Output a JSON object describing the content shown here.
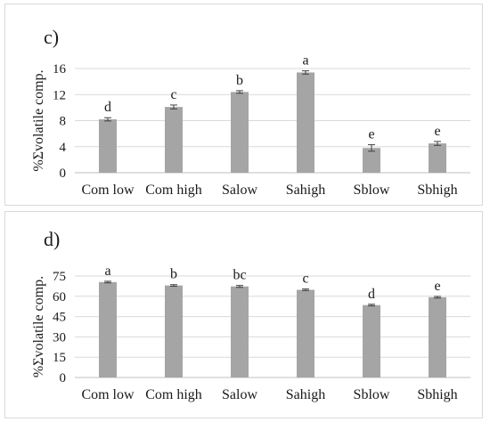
{
  "chart_data": [
    {
      "panel_label": "c)",
      "type": "bar",
      "categories": [
        "Com low",
        "Com high",
        "Salow",
        "Sahigh",
        "Sblow",
        "Sbhigh"
      ],
      "values": [
        8.2,
        10.1,
        12.4,
        15.4,
        3.8,
        4.5
      ],
      "errors": [
        0.25,
        0.3,
        0.2,
        0.25,
        0.5,
        0.3
      ],
      "letters": [
        "d",
        "c",
        "b",
        "a",
        "e",
        "e"
      ],
      "ylabel": "%Σvolatile comp.",
      "ylim": [
        0,
        16
      ],
      "yticks": [
        0,
        4,
        8,
        12,
        16
      ],
      "grid": true,
      "bar_color": "#a5a5a5"
    },
    {
      "panel_label": "d)",
      "type": "bar",
      "categories": [
        "Com low",
        "Com high",
        "Salow",
        "Sahigh",
        "Sblow",
        "Sbhigh"
      ],
      "values": [
        70.5,
        68,
        67.3,
        64.8,
        53.5,
        59.3
      ],
      "errors": [
        0.6,
        0.6,
        0.7,
        0.6,
        0.6,
        0.6
      ],
      "letters": [
        "a",
        "b",
        "bc",
        "c",
        "d",
        "e"
      ],
      "ylabel": "%Σvolatile comp.",
      "ylim": [
        0,
        75
      ],
      "yticks": [
        0,
        15,
        30,
        45,
        60,
        75
      ],
      "grid": true,
      "bar_color": "#a5a5a5"
    }
  ]
}
